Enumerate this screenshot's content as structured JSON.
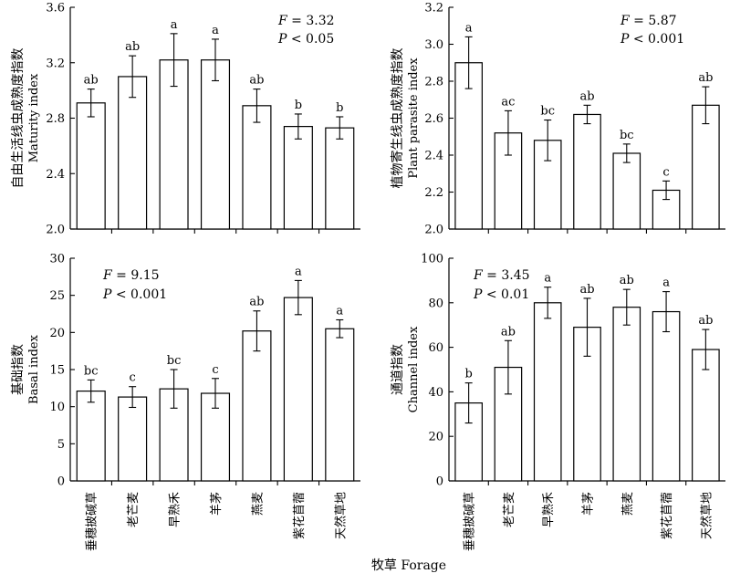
{
  "chart_data": {
    "type": "bar",
    "categories": [
      "垂穗披碱草",
      "老芒麦",
      "早熟禾",
      "羊茅",
      "燕麦",
      "紫花苜蓿",
      "天然草地"
    ],
    "xlabel": "牧草  Forage",
    "panels": [
      {
        "ylabel_cn": "自由生活线虫成熟度指数",
        "ylabel_en": "Maturity index",
        "ylim": [
          2.0,
          3.6
        ],
        "yticks": [
          "2.0",
          "2.4",
          "2.8",
          "3.2",
          "3.6"
        ],
        "values": [
          2.91,
          3.1,
          3.22,
          3.22,
          2.89,
          2.74,
          2.73
        ],
        "errors": [
          0.1,
          0.15,
          0.19,
          0.15,
          0.12,
          0.09,
          0.08
        ],
        "letters": [
          "ab",
          "ab",
          "a",
          "a",
          "ab",
          "b",
          "b"
        ],
        "stat_f_symbol": "F",
        "stat_f": " = 3.32",
        "stat_p_symbol": "P",
        "stat_p": " < 0.05"
      },
      {
        "ylabel_cn": "植物寄生线虫成熟度指数",
        "ylabel_en": "Plant parasite index",
        "ylim": [
          2.0,
          3.2
        ],
        "yticks": [
          "2.0",
          "2.2",
          "2.4",
          "2.6",
          "2.8",
          "3.0",
          "3.2"
        ],
        "values": [
          2.9,
          2.52,
          2.48,
          2.62,
          2.41,
          2.21,
          2.67
        ],
        "errors": [
          0.14,
          0.12,
          0.11,
          0.05,
          0.05,
          0.05,
          0.1
        ],
        "letters": [
          "a",
          "ac",
          "bc",
          "ab",
          "bc",
          "c",
          "ab"
        ],
        "stat_f_symbol": "F",
        "stat_f": " = 5.87",
        "stat_p_symbol": "P",
        "stat_p": " < 0.001"
      },
      {
        "ylabel_cn": "基础指数",
        "ylabel_en": "Basal index",
        "ylim": [
          0,
          30
        ],
        "yticks": [
          "0",
          "5",
          "10",
          "15",
          "20",
          "25",
          "30"
        ],
        "values": [
          12.1,
          11.3,
          12.4,
          11.8,
          20.2,
          24.7,
          20.5
        ],
        "errors": [
          1.5,
          1.4,
          2.6,
          2.0,
          2.7,
          2.3,
          1.2
        ],
        "letters": [
          "bc",
          "c",
          "bc",
          "c",
          "ab",
          "a",
          "a"
        ],
        "stat_f_symbol": "F",
        "stat_f": " = 9.15",
        "stat_p_symbol": "P",
        "stat_p": " < 0.001"
      },
      {
        "ylabel_cn": "通道指数",
        "ylabel_en": "Channel index",
        "ylim": [
          0,
          100
        ],
        "yticks": [
          "0",
          "20",
          "40",
          "60",
          "80",
          "100"
        ],
        "values": [
          35,
          51,
          80,
          69,
          78,
          76,
          59
        ],
        "errors": [
          9,
          12,
          7,
          13,
          8,
          9,
          9
        ],
        "letters": [
          "b",
          "ab",
          "a",
          "ab",
          "ab",
          "a",
          "ab"
        ],
        "stat_f_symbol": "F",
        "stat_f": " = 3.45",
        "stat_p_symbol": "P",
        "stat_p": " < 0.01"
      }
    ]
  }
}
